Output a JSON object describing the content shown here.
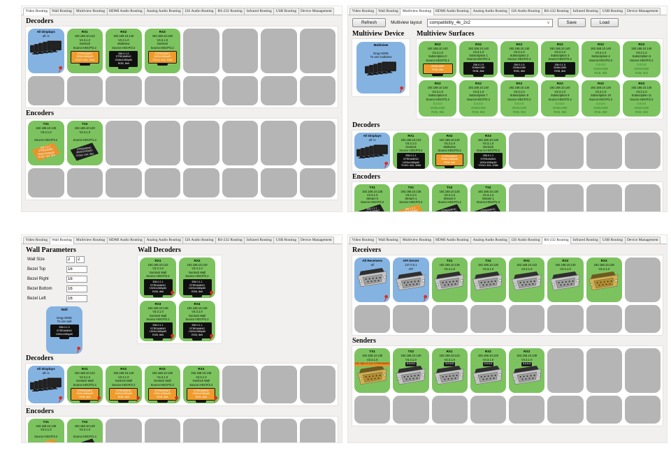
{
  "tabs": [
    "Video Routing",
    "Wall Routing",
    "Multiview Routing",
    "HDMI Audio Routing",
    "Analog Audio Routing",
    "I2S Audio Routing",
    "RS-232 Routing",
    "Infrared Routing",
    "USB Routing",
    "Device Management"
  ],
  "video": {
    "decoders_label": "Decoders",
    "encoders_label": "Encoders",
    "decoder_slots": [
      {
        "t": "blue",
        "title": "All Displays",
        "lines": [
          "all: rx"
        ],
        "icon": "monitors",
        "pin": true
      },
      {
        "t": "green",
        "title": "RX1",
        "lines": [
          "192.168.10.122",
          "V3.3.1.0",
          "Genlock",
          "Source:HDCP/2.2"
        ],
        "icon": "monitor",
        "screen": "orange",
        "screen_lines": [
          "STREAMING",
          "1920x1080p60",
          "YCbCr 444, 10bit"
        ]
      },
      {
        "t": "green",
        "title": "RX2",
        "lines": [
          "192.168.10.140",
          "V3.3.1.0",
          "Multiview",
          "Source:HDCP/2.2"
        ],
        "icon": "monitor",
        "screen": "black",
        "screen_lines": [
          "358.0.1.5",
          "STREAMING",
          "2048x1080p60",
          "RGB, 8bit"
        ]
      },
      {
        "t": "green",
        "title": "RX3",
        "lines": [
          "192.168.10.138",
          "V3.3.1.0",
          "Genlock",
          "Source:HDCP/2.2"
        ],
        "icon": "monitor",
        "screen": "orange",
        "screen_lines": [
          "STREAMING",
          "1920x1080p60",
          "YCbCr 444, 10bit"
        ]
      },
      {
        "t": "empty"
      },
      {
        "t": "empty"
      },
      {
        "t": "empty"
      },
      {
        "t": "empty"
      }
    ],
    "decoder_slots2": [
      {
        "t": "empty"
      },
      {
        "t": "empty"
      },
      {
        "t": "empty"
      },
      {
        "t": "empty"
      },
      {
        "t": "empty"
      },
      {
        "t": "empty"
      },
      {
        "t": "empty"
      },
      {
        "t": "empty"
      }
    ],
    "encoder_slots": [
      {
        "t": "green",
        "title": "TX1",
        "lines": [
          "192.168.10.135",
          "V3.3.1.0",
          "",
          "Source:HDCP/2.2"
        ],
        "icon": "chip",
        "screen": "orange",
        "screen_lines": [
          "358.1.2.1",
          "STREAMING",
          "3840x2160p30",
          "YCbCr 444, 8bit"
        ]
      },
      {
        "t": "green",
        "title": "TX2",
        "lines": [
          "192.168.10.130",
          "V3.3.1.0",
          "",
          "Source:HDCP/1.4"
        ],
        "icon": "chip",
        "screen": "black",
        "screen_lines": [
          "STREAMING",
          "3840x2160p30",
          "YCbCr 444, 8bit"
        ]
      },
      {
        "t": "empty"
      },
      {
        "t": "empty"
      },
      {
        "t": "empty"
      },
      {
        "t": "empty"
      },
      {
        "t": "empty"
      },
      {
        "t": "empty"
      }
    ],
    "encoder_slots2": [
      {
        "t": "empty"
      },
      {
        "t": "empty"
      },
      {
        "t": "empty"
      },
      {
        "t": "empty"
      },
      {
        "t": "empty"
      },
      {
        "t": "empty"
      },
      {
        "t": "empty"
      },
      {
        "t": "empty"
      }
    ]
  },
  "multiview": {
    "toolbar": {
      "refresh": "Refresh",
      "layout_label": "Multiview layout",
      "layout_value": "compatibility_4k_2x2",
      "arrow": "∨",
      "save": "Save",
      "load": "Load"
    },
    "device_label": "Multiview Device",
    "surfaces_label": "Multiview Surfaces",
    "decoders_label": "Decoders",
    "encoders_label": "Encoders",
    "device_cards": [
      {
        "t": "blue",
        "title": "Multiview",
        "lines": [
          "",
          "Drag HERE",
          "To use multiview"
        ],
        "icon": "monitors",
        "pin": true
      }
    ],
    "surface_slots": [
      {
        "t": "green",
        "title": "RX2",
        "lines": [
          "192.168.10.140",
          "V3.3.1.0",
          "Subscription 0",
          "Source:HDCP/2.2"
        ],
        "icon": "monitor",
        "screen": "orange",
        "screen_lines": [
          "2048x1080",
          "RGB, 8bit"
        ]
      },
      {
        "t": "green",
        "title": "RX2",
        "lines": [
          "192.168.10.140",
          "V3.3.1.0",
          "Subscription 1",
          "Source:HDCP/2.2"
        ],
        "icon": "monitor",
        "screen": "black",
        "screen_lines": [
          "256.0.1.5",
          "2048x1080",
          "RGB, 8bit"
        ]
      },
      {
        "t": "green",
        "title": "RX2",
        "lines": [
          "192.168.10.140",
          "V3.3.1.0",
          "Subscription 2",
          "Source:HDCP/2.2"
        ],
        "icon": "monitor",
        "screen": "black",
        "screen_lines": [
          "256.0.1.5",
          "2048x1080",
          "RGB, 8bit"
        ]
      },
      {
        "t": "green",
        "title": "RX2",
        "lines": [
          "192.168.10.140",
          "V3.3.1.0",
          "Subscription 3",
          "Source:HDCP/2.2"
        ],
        "icon": "monitor",
        "screen": "black",
        "screen_lines": [
          "256.0.1.5",
          "2048x1080",
          "RGB, 8bit"
        ]
      },
      {
        "t": "green",
        "title": "RX2",
        "lines": [
          "192.168.10.140",
          "V3.3.1.0",
          "Subscription 4",
          "Source:HDCP/2.2"
        ],
        "extra": [
          "0.0.0.0",
          "2048x1080",
          "RGB, 8bit"
        ]
      },
      {
        "t": "green",
        "title": "RX2",
        "lines": [
          "192.168.10.140",
          "V3.3.1.0",
          "Subscription 5",
          "Source:HDCP/2.2"
        ],
        "extra": [
          "0.0.0.0",
          "2048x1080",
          "RGB, 8bit"
        ]
      },
      {
        "t": "green",
        "title": "RX2",
        "lines": [
          "192.168.10.140",
          "V3.3.1.0",
          "Subscription 6",
          "Source:HDCP/2.2"
        ],
        "extra": [
          "0.0.0.0",
          "2048x1080",
          "RGB, 8bit"
        ]
      },
      {
        "t": "green",
        "title": "RX2",
        "lines": [
          "192.168.10.140",
          "V3.3.1.0",
          "Subscription 7",
          "Source:HDCP/2.2"
        ],
        "extra": [
          "0.0.0.0",
          "2048x1080",
          "RGB, 8bit"
        ]
      },
      {
        "t": "green",
        "title": "RX2",
        "lines": [
          "192.168.10.140",
          "V3.3.1.0",
          "Subscription 8",
          "Source:HDCP/2.2"
        ],
        "extra": [
          "0.0.0.0",
          "2048x1080",
          "RGB, 8bit"
        ]
      },
      {
        "t": "green",
        "title": "RX2",
        "lines": [
          "192.168.10.140",
          "V3.3.1.0",
          "Subscription 9",
          "Source:HDCP/2.2"
        ],
        "extra": [
          "0.0.0.0",
          "2048x1080",
          "RGB, 8bit"
        ]
      },
      {
        "t": "green",
        "title": "RX2",
        "lines": [
          "192.168.10.140",
          "V3.3.1.0",
          "Subscription 10",
          "Source:HDCP/2.2"
        ],
        "extra": [
          "0.0.0.0",
          "2048x1080",
          "RGB, 8bit"
        ]
      },
      {
        "t": "green",
        "title": "RX2",
        "lines": [
          "192.168.10.140",
          "V3.3.1.0",
          "Subscription 11",
          "Source:HDCP/2.2"
        ],
        "extra": [
          "0.0.0.0",
          "2048x1080",
          "RGB, 8bit"
        ]
      }
    ],
    "decoder_slots": [
      {
        "t": "blue",
        "title": "All Displays",
        "lines": [
          "all: rx"
        ],
        "icon": "monitors",
        "pin": true
      },
      {
        "t": "green",
        "title": "RX1",
        "lines": [
          "192.168.10.122",
          "V3.3.1.0",
          "Genlock",
          "Source:HDCP/2.2"
        ],
        "icon": "monitor",
        "screen": "black",
        "screen_lines": [
          "358.0.1.1",
          "STREAMING",
          "1920x1080p60",
          "YCbCr 444, 10bit"
        ]
      },
      {
        "t": "green",
        "title": "RX2",
        "lines": [
          "192.168.10.140",
          "V3.3.1.0",
          "Multiview",
          "Source:HDCP/2.2"
        ],
        "icon": "monitor",
        "screen": "orange",
        "screen_lines": [
          "STREAMING",
          "2048x1080p60",
          "RGB, 8bit"
        ]
      },
      {
        "t": "green",
        "title": "RX3",
        "lines": [
          "192.168.10.138",
          "V3.3.1.0",
          "Genlock",
          "Source:HDCP/2.2"
        ],
        "icon": "monitor",
        "screen": "black",
        "screen_lines": [
          "358.0.1.1",
          "STREAMING",
          "1920x1080p60",
          "YCbCr 444, 10bit"
        ]
      },
      {
        "t": "empty"
      },
      {
        "t": "empty"
      },
      {
        "t": "empty"
      },
      {
        "t": "empty"
      }
    ],
    "encoder_slots": [
      {
        "t": "green",
        "title": "TX1",
        "lines": [
          "192.168.10.135",
          "V3.3.1.0",
          "Stream 0",
          "Source:HDCP/2.2"
        ],
        "icon": "chip",
        "screen": "black",
        "screen_lines": [
          "358.1.2.1",
          "STREAMING",
          "3840x2160p30",
          "YCbCr 444, 8bit"
        ]
      },
      {
        "t": "green",
        "title": "TX1",
        "lines": [
          "192.168.10.135",
          "V3.3.1.0",
          "Stream 1",
          "Source:HDCP/2.2"
        ],
        "icon": "chip",
        "screen": "orange",
        "screen_lines": [
          "358.1.2.2",
          "STREAMING",
          "3840x2160p30",
          "YCbCr 444, 8bit"
        ]
      },
      {
        "t": "green",
        "title": "TX2",
        "lines": [
          "192.168.10.130",
          "V3.3.1.0",
          "Stream 0",
          "Source:HDCP/1.4"
        ],
        "icon": "chip",
        "screen": "black",
        "screen_lines": [
          "STREAMING",
          "3840x2160p30",
          "YCbCr 444, 8bit"
        ]
      },
      {
        "t": "green",
        "title": "TX2",
        "lines": [
          "192.168.10.130",
          "V3.3.1.0",
          "Stream 1",
          "Source:HDCP/1.4"
        ],
        "icon": "chip",
        "screen": "black",
        "screen_lines": [
          "STREAMING",
          "3840x2160p30",
          "YCbCr 444, 8bit"
        ]
      },
      {
        "t": "empty"
      },
      {
        "t": "empty"
      },
      {
        "t": "empty"
      },
      {
        "t": "empty"
      }
    ]
  },
  "wall": {
    "params_label": "Wall Parameters",
    "wall_decoders_label": "Wall Decoders",
    "decoders_label": "Decoders",
    "encoders_label": "Encoders",
    "params": {
      "wall_size": {
        "label": "Wall Size",
        "v1": "2",
        "v2": "2"
      },
      "bezel_top": {
        "label": "Bezel Top",
        "v": "16"
      },
      "bezel_right": {
        "label": "Bezel Right",
        "v": "16"
      },
      "bezel_bottom": {
        "label": "Bezel Bottom",
        "v": "16"
      },
      "bezel_left": {
        "label": "Bezel Left",
        "v": "16"
      }
    },
    "wall_cards": [
      {
        "t": "blue",
        "title": "Wall",
        "lines": [
          "",
          "Drag HERE",
          "To use wall"
        ],
        "icon": "monitor",
        "screen": "black",
        "screen_lines": [
          "358.0.1.3",
          "STREAMING",
          "1920x1080p60"
        ],
        "pin": true
      }
    ],
    "wall_decoder_slots": [
      {
        "t": "green",
        "title": "RX1",
        "lines": [
          "192.168.10.122",
          "V3.3.1.0",
          "Genlock Wall",
          "Source:HDCP/2.2"
        ],
        "icon": "monitor",
        "screen": "black",
        "screen_lines": [
          "358.0.1.1",
          "STREAMING",
          "1920x1080p60",
          "RGB, 8bit"
        ],
        "pin": true
      },
      {
        "t": "green",
        "title": "RX2",
        "lines": [
          "192.168.10.140",
          "V3.3.1.0",
          "Genlock Wall",
          "Source:HDCP/2.2"
        ],
        "icon": "monitor",
        "screen": "black",
        "screen_lines": [
          "358.0.1.1",
          "STREAMING",
          "1920x1080p60",
          "RGB, 8bit"
        ],
        "pin": true
      },
      {
        "t": "green",
        "title": "RX3",
        "lines": [
          "192.168.10.138",
          "V3.3.1.0",
          "Genlock Wall",
          "Source:HDCP/2.2"
        ],
        "icon": "monitor",
        "screen": "black",
        "screen_lines": [
          "358.0.1.1",
          "STREAMING",
          "1920x1080p60",
          "RGB, 8bit"
        ],
        "pin": true
      },
      {
        "t": "green",
        "title": "RX4",
        "lines": [
          "192.168.10.136",
          "V3.3.1.0",
          "Genlock Wall",
          "Source:HDCP/2.2"
        ],
        "icon": "monitor",
        "screen": "black",
        "screen_lines": [
          "358.0.1.1",
          "STREAMING",
          "1920x1080p60",
          "RGB, 8bit"
        ],
        "pin": true
      }
    ],
    "decoder_slots": [
      {
        "t": "blue",
        "title": "All Displays",
        "lines": [
          "all: rx"
        ],
        "icon": "monitors",
        "pin": true
      },
      {
        "t": "green",
        "title": "RX1",
        "lines": [
          "192.168.10.122",
          "V3.3.1.0",
          "Genlock Wall",
          "Source:HDCP/2.2"
        ],
        "icon": "monitor",
        "screen": "orange",
        "screen_lines": [
          "STREAMING",
          "1920x1080p60",
          "RGB, 8bit"
        ],
        "pin": true
      },
      {
        "t": "green",
        "title": "RX2",
        "lines": [
          "192.168.10.140",
          "V3.3.1.0",
          "Genlock Wall",
          "Source:HDCP/2.2"
        ],
        "icon": "monitor",
        "screen": "orange",
        "screen_lines": [
          "STREAMING",
          "1920x1080p60",
          "RGB, 8bit"
        ],
        "pin": true
      },
      {
        "t": "green",
        "title": "RX3",
        "lines": [
          "192.168.10.138",
          "V3.3.1.0",
          "Genlock Wall",
          "Source:HDCP/2.2"
        ],
        "icon": "monitor",
        "screen": "orange",
        "screen_lines": [
          "STREAMING",
          "1920x1080p60",
          "RGB, 8bit"
        ],
        "pin": true
      },
      {
        "t": "green",
        "title": "RX4",
        "lines": [
          "192.168.10.136",
          "V3.3.1.0",
          "Genlock Wall",
          "Source:HDCP/2.2"
        ],
        "icon": "monitor",
        "screen": "orange",
        "screen_lines": [
          "STREAMING",
          "1920x1080p60",
          "RGB, 8bit"
        ],
        "pin": true
      },
      {
        "t": "empty"
      },
      {
        "t": "empty"
      },
      {
        "t": "empty"
      }
    ],
    "encoder_slots": [
      {
        "t": "green",
        "title": "TX1",
        "lines": [
          "192.168.10.135",
          "V3.3.1.0",
          "",
          "Source:HDCP/2.2"
        ],
        "icon": "chip",
        "screen": "orange",
        "screen_lines": [
          "358.1.2.1",
          "STREAMING",
          "3840x2160p30",
          "YCbCr 444, 8bit"
        ]
      },
      {
        "t": "green",
        "title": "TX2",
        "lines": [
          "192.168.10.130",
          "V3.3.1.0",
          "",
          "Source:HDCP/1.4"
        ],
        "icon": "chip",
        "screen": "black",
        "screen_lines": [
          "STREAMING",
          "3840x2160p30",
          "YCbCr 444, 8bit"
        ]
      },
      {
        "t": "empty"
      },
      {
        "t": "empty"
      },
      {
        "t": "empty"
      },
      {
        "t": "empty"
      },
      {
        "t": "empty"
      },
      {
        "t": "empty"
      }
    ]
  },
  "rs232": {
    "receivers_label": "Receivers",
    "senders_label": "Senders",
    "receiver_slots": [
      {
        "t": "blue",
        "title": "All Receivers",
        "lines": [
          "all"
        ],
        "icon": "db9",
        "pin": true
      },
      {
        "t": "blue",
        "title": "API Server",
        "lines": [
          "127.0.0.1",
          "API"
        ],
        "icon": "db9",
        "pin": true
      },
      {
        "t": "green",
        "title": "TX1",
        "lines": [
          "192.168.10.135",
          "V3.3.1.0"
        ],
        "icon": "db9"
      },
      {
        "t": "green",
        "title": "TX2",
        "lines": [
          "192.168.10.130",
          "V3.3.1.0"
        ],
        "icon": "db9"
      },
      {
        "t": "green",
        "title": "RX1",
        "lines": [
          "192.168.10.122",
          "V3.3.1.0"
        ],
        "icon": "db9"
      },
      {
        "t": "green",
        "title": "RX2",
        "lines": [
          "192.168.10.140",
          "V3.3.1.0"
        ],
        "icon": "db9"
      },
      {
        "t": "green",
        "title": "RX3",
        "lines": [
          "192.168.10.138",
          "V3.3.1.0"
        ],
        "icon": "db9gold"
      },
      {
        "t": "empty"
      }
    ],
    "receiver_slots2": [
      {
        "t": "empty"
      },
      {
        "t": "empty"
      },
      {
        "t": "empty"
      },
      {
        "t": "empty"
      },
      {
        "t": "empty"
      },
      {
        "t": "empty"
      },
      {
        "t": "empty"
      },
      {
        "t": "empty"
      }
    ],
    "sender_slots": [
      {
        "t": "green",
        "title": "TX1",
        "lines": [
          "192.168.10.135",
          "V3.3.1.0"
        ],
        "tag": "192.168.10.122 STREAMING",
        "tag_color": "orange",
        "icon": "db9gold"
      },
      {
        "t": "green",
        "title": "TX2",
        "lines": [
          "192.168.10.130",
          "V3.3.1.0"
        ],
        "tag": "0.0.0.0",
        "tag_color": "black",
        "icon": "db9"
      },
      {
        "t": "green",
        "title": "RX1",
        "lines": [
          "192.168.10.122",
          "V3.3.1.0"
        ],
        "tag": "0.0.0.0",
        "tag_color": "black",
        "icon": "db9"
      },
      {
        "t": "green",
        "title": "RX2",
        "lines": [
          "192.168.10.140",
          "V3.3.1.0"
        ],
        "tag": "0.0.0.0",
        "tag_color": "black",
        "icon": "db9"
      },
      {
        "t": "green",
        "title": "RX3",
        "lines": [
          "192.168.10.138",
          "V3.3.1.0"
        ],
        "tag": "0.0.0.0",
        "tag_color": "black",
        "icon": "db9"
      },
      {
        "t": "empty"
      },
      {
        "t": "empty"
      },
      {
        "t": "empty"
      }
    ],
    "sender_slots2": [
      {
        "t": "empty"
      },
      {
        "t": "empty"
      },
      {
        "t": "empty"
      },
      {
        "t": "empty"
      },
      {
        "t": "empty"
      },
      {
        "t": "empty"
      },
      {
        "t": "empty"
      },
      {
        "t": "empty"
      }
    ]
  }
}
